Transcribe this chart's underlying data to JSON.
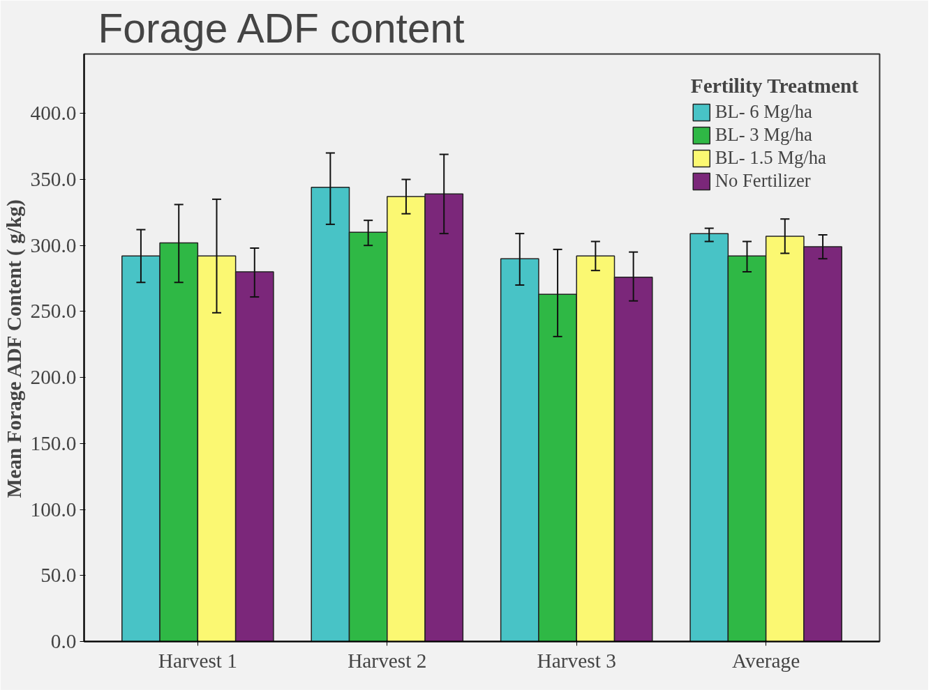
{
  "chart_data": {
    "type": "bar",
    "title": "Forage ADF content",
    "ylabel": "Mean Forage ADF Content ( g/kg)",
    "legend_title": "Fertility Treatment",
    "legend": "top right",
    "grid": false,
    "categories": [
      "Harvest 1",
      "Harvest 2",
      "Harvest 3",
      "Average"
    ],
    "ylim": [
      0,
      445
    ],
    "yticks": [
      {
        "value": 0,
        "label": "0.0"
      },
      {
        "value": 50,
        "label": "50.0"
      },
      {
        "value": 100,
        "label": "100.0"
      },
      {
        "value": 150,
        "label": "150.0"
      },
      {
        "value": 200,
        "label": "200.0"
      },
      {
        "value": 250,
        "label": "250.0"
      },
      {
        "value": 300,
        "label": "300.0"
      },
      {
        "value": 350,
        "label": "350.0"
      },
      {
        "value": 400,
        "label": "400.0"
      }
    ],
    "series": [
      {
        "name": "BL- 6 Mg/ha",
        "color": "#48c3c6",
        "values": [
          292,
          344,
          290,
          309
        ],
        "errors": [
          [
            272,
            312
          ],
          [
            316,
            370
          ],
          [
            270,
            309
          ],
          [
            303,
            313
          ]
        ]
      },
      {
        "name": "BL- 3 Mg/ha",
        "color": "#2fb845",
        "values": [
          302,
          310,
          263,
          292
        ],
        "errors": [
          [
            272,
            331
          ],
          [
            300,
            319
          ],
          [
            231,
            297
          ],
          [
            280,
            303
          ]
        ]
      },
      {
        "name": "BL- 1.5 Mg/ha",
        "color": "#fbf872",
        "values": [
          292,
          337,
          292,
          307
        ],
        "errors": [
          [
            249,
            335
          ],
          [
            324,
            350
          ],
          [
            281,
            303
          ],
          [
            294,
            320
          ]
        ]
      },
      {
        "name": "No Fertilizer",
        "color": "#7b277a",
        "values": [
          280,
          339,
          276,
          299
        ],
        "errors": [
          [
            261,
            298
          ],
          [
            309,
            369
          ],
          [
            258,
            295
          ],
          [
            290,
            308
          ]
        ]
      }
    ]
  }
}
